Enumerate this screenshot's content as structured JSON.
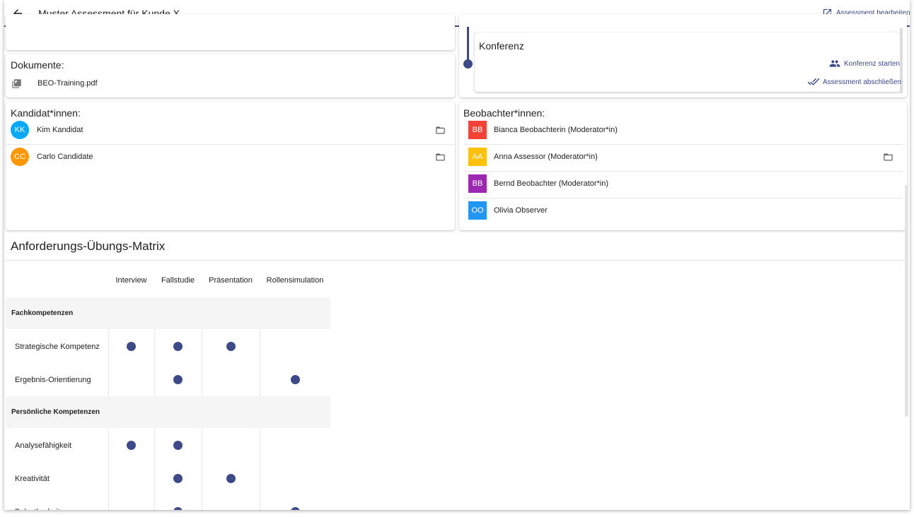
{
  "header": {
    "title": "Muster Assessment für Kunde X",
    "edit_action": "Assessment bearbeiten"
  },
  "documents": {
    "title": "Dokumente:",
    "files": [
      "BEO-Training.pdf"
    ]
  },
  "timeline": {
    "step": "Konferenz",
    "actions": [
      "Konferenz starten",
      "Assessment abschließen"
    ]
  },
  "candidates": {
    "title": "Kandidat*innen:",
    "people": [
      {
        "initials": "KK",
        "name": "Kim Kandidat",
        "color": "#03a9f4",
        "folder": true
      },
      {
        "initials": "CC",
        "name": "Carlo Candidate",
        "color": "#ff9800",
        "folder": true
      }
    ]
  },
  "observers": {
    "title": "Beobachter*innen:",
    "people": [
      {
        "initials": "BB",
        "name": "Bianca Beobachterin (Moderator*in)",
        "color": "#f44336",
        "folder": false
      },
      {
        "initials": "AA",
        "name": "Anna Assessor (Moderator*in)",
        "color": "#ffc107",
        "folder": true
      },
      {
        "initials": "BB",
        "name": "Bernd Beobachter (Moderator*in)",
        "color": "#9c27b0",
        "folder": false
      },
      {
        "initials": "OO",
        "name": "Olivia Observer",
        "color": "#2196f3",
        "folder": false
      }
    ]
  },
  "matrix": {
    "title": "Anforderungs-Übungs-Matrix",
    "exercises": [
      "Interview",
      "Fallstudie",
      "Präsentation",
      "Rollensimulation"
    ],
    "dot_color": "#3d4a87",
    "groups": [
      {
        "name": "Fachkompetenzen",
        "rows": [
          {
            "name": "Strategische Kompetenz",
            "marks": [
              true,
              true,
              true,
              false
            ]
          },
          {
            "name": "Ergebnis-Orientierung",
            "marks": [
              false,
              true,
              false,
              true
            ]
          }
        ]
      },
      {
        "name": "Persönliche Kompetenzen",
        "rows": [
          {
            "name": "Analysefähigkeit",
            "marks": [
              true,
              true,
              false,
              false
            ]
          },
          {
            "name": "Kreativität",
            "marks": [
              false,
              true,
              true,
              false
            ]
          },
          {
            "name": "Belastbarkeit",
            "marks": [
              false,
              true,
              false,
              true
            ]
          }
        ]
      }
    ]
  }
}
